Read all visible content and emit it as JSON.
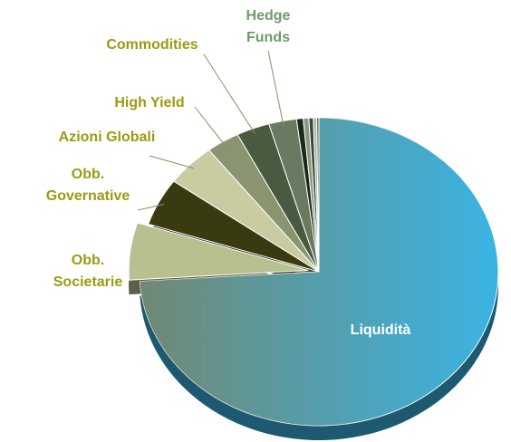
{
  "chart_data": {
    "type": "pie",
    "categories": [
      "Liquidità",
      "Obb. Societarie",
      "Obb. Governative",
      "Azioni Globali",
      "High Yield",
      "Commodities",
      "Hedge Funds",
      null,
      null,
      null,
      null,
      null
    ],
    "values": [
      74,
      6,
      5,
      4.5,
      3,
      3,
      2.5,
      0.6,
      0.5,
      0.4,
      0.3,
      0.2
    ],
    "colors": [
      "#3ab4e4",
      "#b8c090",
      "#3a3a10",
      "#c8cca0",
      "#8a9470",
      "#4a5a40",
      "#6a7a60",
      "#1a2a1a",
      "#8a9a80",
      "#3a4a3a",
      "#b0b8a0",
      "#5a6a50"
    ],
    "exploded": [
      1
    ]
  }
}
